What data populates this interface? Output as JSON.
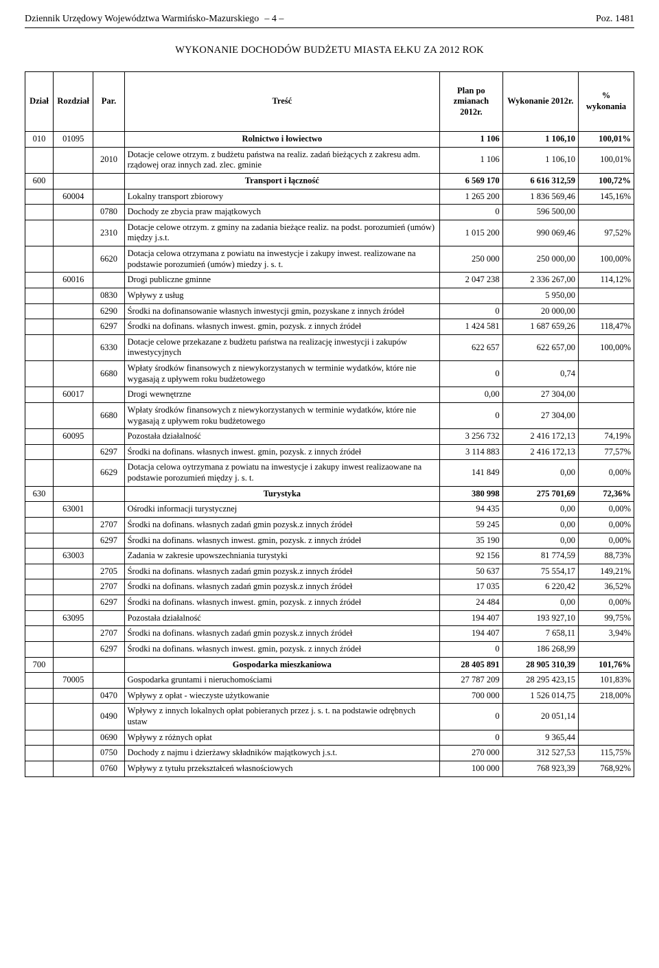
{
  "header": {
    "journal": "Dziennik Urzędowy Województwa Warmińsko-Mazurskiego",
    "pageno": "– 4 –",
    "poz": "Poz. 1481"
  },
  "title": "WYKONANIE DOCHODÓW BUDŻETU MIASTA EŁKU ZA 2012 ROK",
  "columns": {
    "dzial": "Dział",
    "rozdzial": "Rozdział",
    "par": "Par.",
    "tresc": "Treść",
    "plan": "Plan po zmianach 2012r.",
    "wyk": "Wykonanie 2012r.",
    "pct": "% wykonania"
  },
  "rows": [
    {
      "type": "section",
      "dzial": "010",
      "rozdz": "01095",
      "tresc": "Rolnictwo i łowiectwo",
      "plan": "1 106",
      "wyk": "1 106,10",
      "pct": "100,01%"
    },
    {
      "type": "item",
      "par": "2010",
      "tresc": "Dotacje celowe otrzym. z budżetu państwa na realiz. zadań bieżących z zakresu adm. rządowej oraz innych zad. zlec. gminie",
      "plan": "1 106",
      "wyk": "1 106,10",
      "pct": "100,01%"
    },
    {
      "type": "section",
      "dzial": "600",
      "tresc": "Transport i łączność",
      "plan": "6 569 170",
      "wyk": "6 616 312,59",
      "pct": "100,72%"
    },
    {
      "type": "chapter",
      "rozdz": "60004",
      "tresc": "Lokalny transport zbiorowy",
      "plan": "1 265 200",
      "wyk": "1 836 569,46",
      "pct": "145,16%"
    },
    {
      "type": "item",
      "par": "0780",
      "tresc": "Dochody ze zbycia praw majątkowych",
      "plan": "0",
      "wyk": "596 500,00",
      "pct": ""
    },
    {
      "type": "item",
      "par": "2310",
      "tresc": "Dotacje celowe otrzym. z gminy na zadania bieżące realiz. na podst. porozumień (umów) między j.s.t.",
      "plan": "1 015 200",
      "wyk": "990 069,46",
      "pct": "97,52%"
    },
    {
      "type": "item",
      "par": "6620",
      "tresc": "Dotacja celowa otrzymana z powiatu na inwestycje i zakupy inwest. realizowane na podstawie porozumień (umów) miedzy j. s. t.",
      "plan": "250 000",
      "wyk": "250 000,00",
      "pct": "100,00%"
    },
    {
      "type": "chapter",
      "rozdz": "60016",
      "tresc": "Drogi publiczne gminne",
      "plan": "2 047 238",
      "wyk": "2 336 267,00",
      "pct": "114,12%"
    },
    {
      "type": "item",
      "par": "0830",
      "tresc": "Wpływy z usług",
      "plan": "",
      "wyk": "5 950,00",
      "pct": ""
    },
    {
      "type": "item",
      "par": "6290",
      "tresc": "Środki na dofinansowanie własnych inwestycji gmin, pozyskane z innych źródeł",
      "plan": "0",
      "wyk": "20 000,00",
      "pct": ""
    },
    {
      "type": "item",
      "par": "6297",
      "tresc": "Środki na dofinans. własnych inwest. gmin, pozysk. z innych źródeł",
      "plan": "1 424 581",
      "wyk": "1 687 659,26",
      "pct": "118,47%"
    },
    {
      "type": "item",
      "par": "6330",
      "tresc": "Dotacje celowe przekazane z budżetu państwa na realizację inwestycji i zakupów inwestycyjnych",
      "plan": "622 657",
      "wyk": "622 657,00",
      "pct": "100,00%"
    },
    {
      "type": "item",
      "par": "6680",
      "tresc": "Wpłaty środków finansowych z niewykorzystanych w terminie wydatków, które nie wygasają z upływem roku budżetowego",
      "plan": "0",
      "wyk": "0,74",
      "pct": ""
    },
    {
      "type": "chapter",
      "rozdz": "60017",
      "tresc": "Drogi wewnętrzne",
      "plan": "0,00",
      "wyk": "27 304,00",
      "pct": ""
    },
    {
      "type": "item",
      "par": "6680",
      "tresc": "Wpłaty środków finansowych z niewykorzystanych w terminie wydatków, które nie wygasają z upływem roku budżetowego",
      "plan": "0",
      "wyk": "27 304,00",
      "pct": ""
    },
    {
      "type": "chapter",
      "rozdz": "60095",
      "tresc": "Pozostała działalność",
      "plan": "3 256 732",
      "wyk": "2 416 172,13",
      "pct": "74,19%"
    },
    {
      "type": "item",
      "par": "6297",
      "tresc": "Środki na dofinans. własnych inwest. gmin, pozysk. z innych źródeł",
      "plan": "3 114 883",
      "wyk": "2 416 172,13",
      "pct": "77,57%"
    },
    {
      "type": "item",
      "par": "6629",
      "tresc": "Dotacja celowa oytrzymana z powiatu na inwestycje i zakupy inwest realizaowane na podstawie porozumień między j. s. t.",
      "plan": "141 849",
      "wyk": "0,00",
      "pct": "0,00%"
    },
    {
      "type": "section",
      "dzial": "630",
      "tresc": "Turystyka",
      "plan": "380 998",
      "wyk": "275 701,69",
      "pct": "72,36%"
    },
    {
      "type": "chapter",
      "rozdz": "63001",
      "tresc": "Ośrodki informacji turystycznej",
      "plan": "94 435",
      "wyk": "0,00",
      "pct": "0,00%"
    },
    {
      "type": "item",
      "par": "2707",
      "tresc": "Środki na dofinans. własnych zadań gmin pozysk.z innych źródeł",
      "plan": "59 245",
      "wyk": "0,00",
      "pct": "0,00%"
    },
    {
      "type": "item",
      "par": "6297",
      "tresc": "Środki na dofinans. własnych inwest. gmin, pozysk. z innych źródeł",
      "plan": "35 190",
      "wyk": "0,00",
      "pct": "0,00%"
    },
    {
      "type": "chapter",
      "rozdz": "63003",
      "tresc": "Zadania w zakresie upowszechniania turystyki",
      "plan": "92 156",
      "wyk": "81 774,59",
      "pct": "88,73%"
    },
    {
      "type": "item",
      "par": "2705",
      "tresc": "Środki na dofinans. własnych zadań gmin pozysk.z innych źródeł",
      "plan": "50 637",
      "wyk": "75 554,17",
      "pct": "149,21%"
    },
    {
      "type": "item",
      "par": "2707",
      "tresc": "Środki na dofinans. własnych zadań gmin pozysk.z innych źródeł",
      "plan": "17 035",
      "wyk": "6 220,42",
      "pct": "36,52%"
    },
    {
      "type": "item",
      "par": "6297",
      "tresc": "Środki na dofinans. własnych inwest. gmin, pozysk. z innych źródeł",
      "plan": "24 484",
      "wyk": "0,00",
      "pct": "0,00%"
    },
    {
      "type": "chapter",
      "rozdz": "63095",
      "tresc": "Pozostała działalność",
      "plan": "194 407",
      "wyk": "193 927,10",
      "pct": "99,75%"
    },
    {
      "type": "item",
      "par": "2707",
      "tresc": "Środki na dofinans. własnych zadań gmin pozysk.z innych źródeł",
      "plan": "194 407",
      "wyk": "7 658,11",
      "pct": "3,94%"
    },
    {
      "type": "item",
      "par": "6297",
      "tresc": "Środki na dofinans. własnych inwest. gmin, pozysk. z innych źródeł",
      "plan": "0",
      "wyk": "186 268,99",
      "pct": ""
    },
    {
      "type": "section",
      "dzial": "700",
      "tresc": "Gospodarka mieszkaniowa",
      "plan": "28 405 891",
      "wyk": "28 905 310,39",
      "pct": "101,76%"
    },
    {
      "type": "chapter",
      "rozdz": "70005",
      "tresc": "Gospodarka gruntami i nieruchomościami",
      "plan": "27 787 209",
      "wyk": "28 295 423,15",
      "pct": "101,83%"
    },
    {
      "type": "item",
      "par": "0470",
      "tresc": "Wpływy z opłat - wieczyste użytkowanie",
      "plan": "700 000",
      "wyk": "1 526 014,75",
      "pct": "218,00%"
    },
    {
      "type": "item",
      "par": "0490",
      "tresc": "Wpływy z innych lokalnych opłat pobieranych przez j. s. t. na podstawie odrębnych ustaw",
      "plan": "0",
      "wyk": "20 051,14",
      "pct": ""
    },
    {
      "type": "item",
      "par": "0690",
      "tresc": "Wpływy z różnych opłat",
      "plan": "0",
      "wyk": "9 365,44",
      "pct": ""
    },
    {
      "type": "item",
      "par": "0750",
      "tresc": "Dochody z najmu i dzierżawy składników majątkowych j.s.t.",
      "plan": "270 000",
      "wyk": "312 527,53",
      "pct": "115,75%"
    },
    {
      "type": "item",
      "par": "0760",
      "tresc": "Wpływy z tytułu przekształceń własnościowych",
      "plan": "100 000",
      "wyk": "768 923,39",
      "pct": "768,92%"
    }
  ]
}
